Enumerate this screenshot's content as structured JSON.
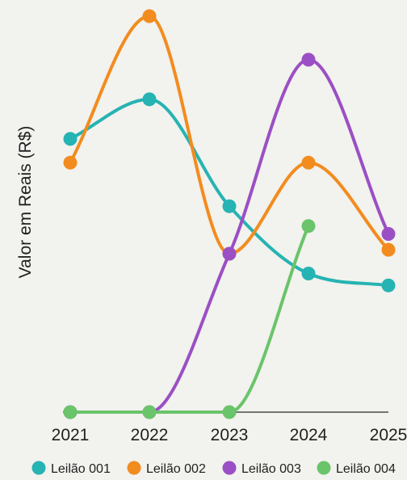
{
  "chart_data": {
    "type": "line",
    "title": "",
    "xlabel": "",
    "ylabel": "Valor em Reais (R$)",
    "x": [
      "2021",
      "2022",
      "2023",
      "2024",
      "2025"
    ],
    "ylim": [
      0,
      100
    ],
    "grid": false,
    "legend_position": "bottom",
    "series": [
      {
        "name": "Leilão 001",
        "color": "#26b3b3",
        "values": [
          69,
          79,
          52,
          35,
          32
        ]
      },
      {
        "name": "Leilão 002",
        "color": "#f28c1f",
        "values": [
          63,
          100,
          40,
          63,
          41
        ]
      },
      {
        "name": "Leilão 003",
        "color": "#9b4fc4",
        "values": [
          0,
          0,
          40,
          89,
          45
        ]
      },
      {
        "name": "Leilão 004",
        "color": "#6ac46a",
        "values": [
          0,
          0,
          0,
          47,
          null
        ]
      }
    ]
  }
}
